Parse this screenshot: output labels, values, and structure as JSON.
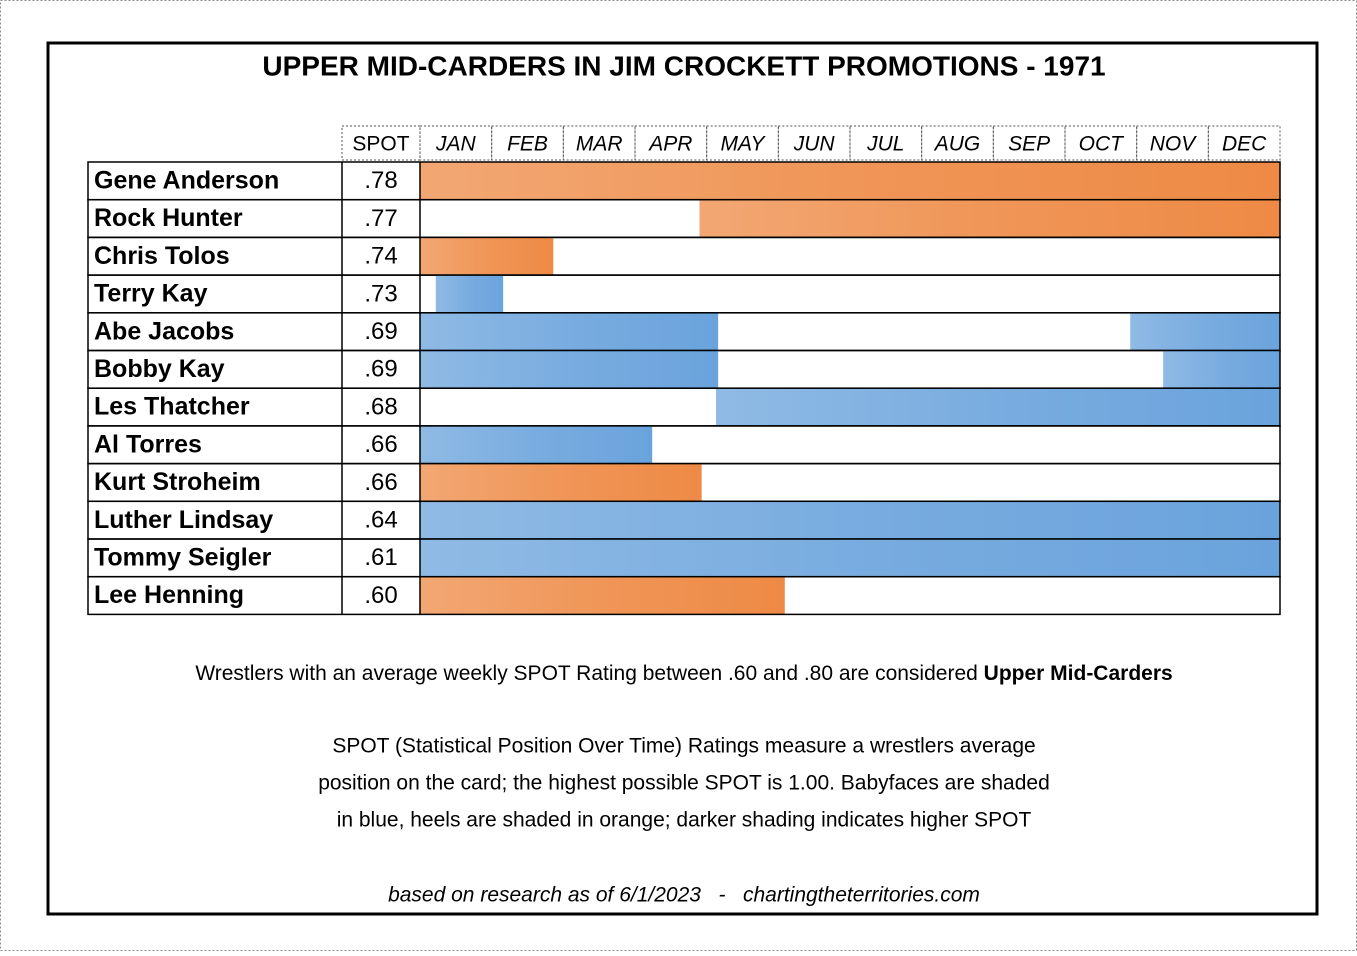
{
  "header": {
    "title": "UPPER MID-CARDERS IN JIM CROCKETT PROMOTIONS - 1971"
  },
  "table": {
    "spot_header": "SPOT",
    "months": [
      "JAN",
      "FEB",
      "MAR",
      "APR",
      "MAY",
      "JUN",
      "JUL",
      "AUG",
      "SEP",
      "OCT",
      "NOV",
      "DEC"
    ],
    "rows": [
      {
        "name": "Gene Anderson",
        "spot": ".78",
        "color": "#ee8a45",
        "segments": [
          [
            0,
            12
          ]
        ]
      },
      {
        "name": "Rock Hunter",
        "spot": ".77",
        "color": "#ee8a45",
        "segments": [
          [
            3.9,
            12
          ]
        ]
      },
      {
        "name": "Chris Tolos",
        "spot": ".74",
        "color": "#ee8a45",
        "segments": [
          [
            0,
            1.86
          ]
        ]
      },
      {
        "name": "Terry Kay",
        "spot": ".73",
        "color": "#6aa3dc",
        "segments": [
          [
            0.22,
            1.16
          ]
        ]
      },
      {
        "name": "Abe Jacobs",
        "spot": ".69",
        "color": "#6aa3dc",
        "segments": [
          [
            0,
            4.16
          ],
          [
            9.91,
            12
          ]
        ]
      },
      {
        "name": "Bobby Kay",
        "spot": ".69",
        "color": "#6aa3dc",
        "segments": [
          [
            0,
            4.16
          ],
          [
            10.37,
            12
          ]
        ]
      },
      {
        "name": "Les Thatcher",
        "spot": ".68",
        "color": "#6aa3dc",
        "segments": [
          [
            4.13,
            12
          ]
        ]
      },
      {
        "name": "Al Torres",
        "spot": ".66",
        "color": "#6aa3dc",
        "segments": [
          [
            0,
            3.24
          ]
        ]
      },
      {
        "name": "Kurt Stroheim",
        "spot": ".66",
        "color": "#ee8a45",
        "segments": [
          [
            0,
            3.93
          ]
        ]
      },
      {
        "name": "Luther Lindsay",
        "spot": ".64",
        "color": "#6aa3dc",
        "segments": [
          [
            0,
            12
          ]
        ]
      },
      {
        "name": "Tommy Seigler",
        "spot": ".61",
        "color": "#6aa3dc",
        "segments": [
          [
            0,
            12
          ]
        ]
      },
      {
        "name": "Lee Henning",
        "spot": ".60",
        "color": "#ee8a45",
        "segments": [
          [
            0,
            5.09
          ]
        ]
      }
    ]
  },
  "notes": {
    "line1": "Wrestlers with an average weekly SPOT Rating between .60 and .80 are considered",
    "line1_bold": "Upper Mid-Carders",
    "paragraph": [
      "SPOT (Statistical Position Over Time) Ratings measure a wrestlers average",
      "position on the card; the highest possible SPOT is 1.00. Babyfaces are shaded",
      "in blue, heels are shaded in orange; darker shading indicates higher SPOT"
    ],
    "footer": "based on research as of 6/1/2023   -   chartingtheterritories.com"
  }
}
